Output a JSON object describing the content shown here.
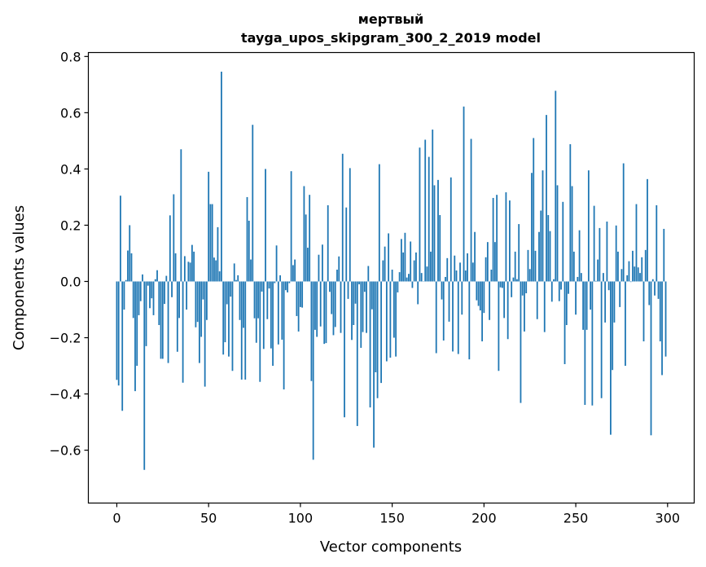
{
  "chart_data": {
    "type": "bar",
    "title": [
      "мертвый",
      "tayga_upos_skipgram_300_2_2019 model"
    ],
    "xlabel": "Vector components",
    "ylabel": "Components values",
    "xlim": [
      -15.5,
      314.5
    ],
    "ylim": [
      -0.788,
      0.814
    ],
    "xticks": [
      0,
      50,
      100,
      150,
      200,
      250,
      300
    ],
    "xtick_labels": [
      "0",
      "50",
      "100",
      "150",
      "200",
      "250",
      "300"
    ],
    "yticks": [
      0.8,
      0.6,
      0.4,
      0.2,
      0.0,
      -0.2,
      -0.4,
      -0.6
    ],
    "ytick_labels": [
      "0.8",
      "0.6",
      "0.4",
      "0.2",
      "0.0",
      "−0.2",
      "−0.4",
      "−0.6"
    ],
    "grid": false,
    "bar_color": "#1f77b4",
    "values": [
      -0.35,
      -0.37,
      0.305,
      -0.46,
      -0.1,
      0.005,
      0.11,
      0.2,
      0.1,
      -0.13,
      -0.39,
      -0.3,
      -0.12,
      -0.07,
      0.025,
      -0.67,
      -0.23,
      -0.015,
      -0.095,
      -0.06,
      -0.12,
      0.008,
      0.04,
      -0.155,
      -0.275,
      -0.275,
      -0.08,
      0.02,
      -0.29,
      0.235,
      -0.056,
      0.31,
      0.1,
      -0.25,
      -0.13,
      0.47,
      -0.36,
      0.09,
      -0.1,
      0.07,
      0.067,
      0.13,
      0.106,
      -0.163,
      -0.144,
      -0.29,
      -0.197,
      -0.064,
      -0.374,
      -0.137,
      0.39,
      0.275,
      0.275,
      0.085,
      0.075,
      0.193,
      0.036,
      0.746,
      -0.26,
      -0.216,
      -0.081,
      -0.267,
      -0.054,
      -0.318,
      0.064,
      0.005,
      0.022,
      -0.137,
      -0.349,
      -0.165,
      -0.349,
      0.3,
      0.216,
      0.078,
      0.557,
      -0.131,
      -0.218,
      -0.131,
      -0.357,
      -0.036,
      -0.24,
      0.4,
      -0.134,
      -0.025,
      -0.238,
      -0.3,
      -0.006,
      0.128,
      -0.224,
      0.022,
      -0.207,
      -0.384,
      -0.031,
      -0.039,
      -0.006,
      0.392,
      0.058,
      0.078,
      -0.123,
      -0.178,
      -0.091,
      -0.093,
      0.339,
      0.238,
      0.12,
      0.308,
      -0.354,
      -0.634,
      -0.172,
      -0.197,
      0.095,
      -0.16,
      0.131,
      -0.222,
      -0.219,
      0.271,
      -0.037,
      -0.116,
      -0.191,
      -0.162,
      0.042,
      0.089,
      -0.183,
      0.454,
      -0.483,
      0.263,
      -0.062,
      0.403,
      -0.208,
      -0.155,
      -0.079,
      -0.514,
      -0.01,
      -0.236,
      -0.18,
      -0.037,
      -0.183,
      0.055,
      -0.448,
      -0.099,
      -0.591,
      -0.323,
      -0.415,
      0.417,
      -0.361,
      0.075,
      0.124,
      -0.284,
      0.171,
      -0.271,
      0.042,
      -0.2,
      -0.267,
      -0.039,
      0.033,
      0.151,
      0.103,
      0.173,
      0.014,
      0.027,
      0.142,
      -0.023,
      0.075,
      0.103,
      -0.081,
      0.476,
      0.03,
      0.0,
      0.504,
      0.053,
      0.443,
      0.106,
      0.54,
      0.342,
      -0.255,
      0.361,
      0.236,
      -0.064,
      -0.21,
      0.016,
      0.083,
      -0.143,
      0.37,
      -0.249,
      0.092,
      0.039,
      -0.258,
      0.067,
      -0.118,
      0.622,
      0.039,
      0.1,
      -0.277,
      0.507,
      0.067,
      0.176,
      -0.067,
      -0.087,
      -0.103,
      -0.213,
      -0.112,
      0.086,
      0.14,
      -0.137,
      0.042,
      0.297,
      0.14,
      0.308,
      -0.318,
      -0.021,
      -0.023,
      -0.13,
      0.317,
      -0.205,
      0.288,
      -0.056,
      0.014,
      0.106,
      0.008,
      0.204,
      -0.432,
      -0.05,
      -0.178,
      -0.042,
      0.112,
      0.044,
      0.386,
      0.51,
      0.109,
      -0.134,
      0.176,
      0.252,
      0.395,
      -0.18,
      0.592,
      0.236,
      0.179,
      -0.072,
      0.008,
      0.678,
      0.342,
      -0.07,
      -0.029,
      0.283,
      -0.294,
      -0.155,
      -0.044,
      0.488,
      0.339,
      0.106,
      -0.118,
      0.016,
      0.182,
      0.03,
      -0.172,
      -0.439,
      -0.172,
      0.395,
      -0.1,
      -0.441,
      0.269,
      0.002,
      0.078,
      0.19,
      -0.415,
      0.03,
      -0.146,
      0.213,
      -0.031,
      -0.545,
      -0.315,
      -0.146,
      0.199,
      0.106,
      -0.091,
      0.044,
      0.42,
      -0.3,
      0.022,
      0.072,
      -0.002,
      0.109,
      0.053,
      0.275,
      0.05,
      0.03,
      0.086,
      -0.213,
      0.112,
      0.364,
      -0.084,
      -0.547,
      0.008,
      -0.05,
      0.271,
      -0.062,
      -0.213,
      -0.333,
      0.187,
      -0.267
    ]
  }
}
